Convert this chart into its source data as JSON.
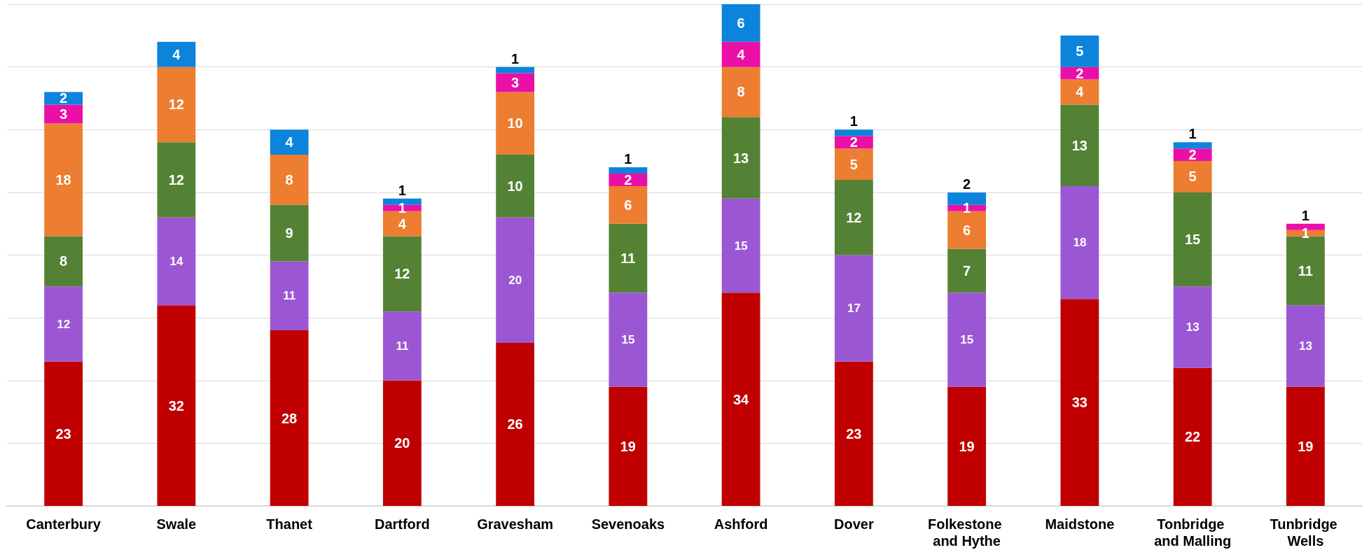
{
  "chart_data": {
    "type": "bar",
    "stacked": true,
    "data_labels": true,
    "grid": "y",
    "tick_labels": "x",
    "categories": [
      "Canterbury",
      "Swale",
      "Thanet",
      "Dartford",
      "Gravesham",
      "Sevenoaks",
      "Ashford",
      "Dover",
      "Folkestone and Hythe",
      "Maidstone",
      "Tonbridge and Malling",
      "Tunbridge Wells"
    ],
    "ylim": [
      0,
      80
    ],
    "yticks": [
      {
        "value": 0,
        "label": null
      },
      {
        "value": 10,
        "label": null
      },
      {
        "value": 20,
        "label": null
      },
      {
        "value": 30,
        "label": null
      },
      {
        "value": 40,
        "label": null
      },
      {
        "value": 50,
        "label": null
      },
      {
        "value": 60,
        "label": null
      },
      {
        "value": 70,
        "label": null
      },
      {
        "value": 80,
        "label": null
      }
    ],
    "series": [
      {
        "color": "#c00000",
        "values": [
          23,
          32,
          28,
          20,
          26,
          19,
          34,
          23,
          19,
          33,
          22,
          19
        ]
      },
      {
        "color": "#9b57d3",
        "values": [
          12,
          14,
          11,
          11,
          20,
          15,
          15,
          17,
          15,
          18,
          13,
          13
        ]
      },
      {
        "color": "#548235",
        "values": [
          8,
          12,
          9,
          12,
          10,
          11,
          13,
          12,
          7,
          13,
          15,
          11
        ]
      },
      {
        "color": "#ed7d31",
        "values": [
          18,
          12,
          8,
          4,
          10,
          6,
          8,
          5,
          6,
          4,
          5,
          1
        ]
      },
      {
        "color": "#ea0fa6",
        "values": [
          3,
          null,
          null,
          1,
          3,
          2,
          4,
          2,
          1,
          2,
          2,
          1
        ]
      },
      {
        "color": "#0c84db",
        "values": [
          2,
          4,
          4,
          1,
          1,
          1,
          6,
          1,
          2,
          5,
          1,
          null
        ]
      }
    ]
  }
}
